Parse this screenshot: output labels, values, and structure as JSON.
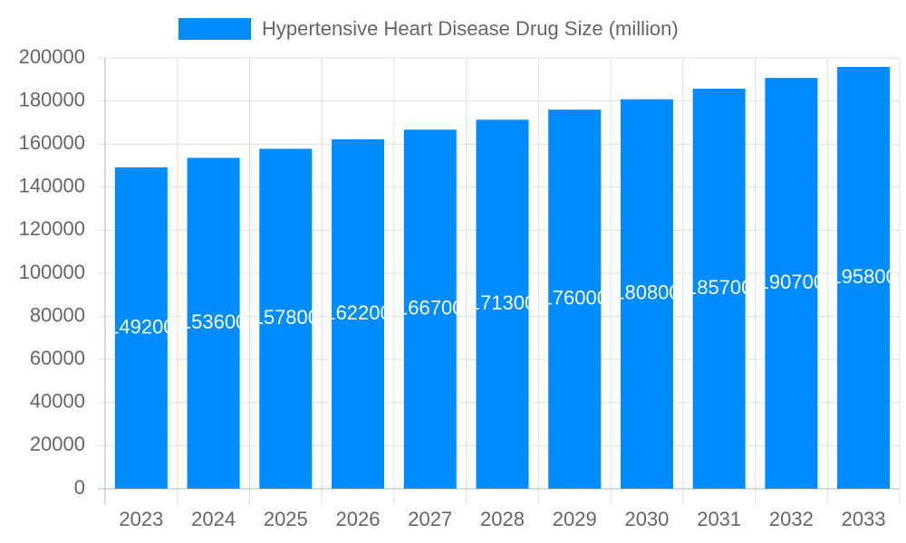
{
  "chart_data": {
    "type": "bar",
    "legend_label": "Hypertensive Heart Disease Drug Size (million)",
    "categories": [
      "2023",
      "2024",
      "2025",
      "2026",
      "2027",
      "2028",
      "2029",
      "2030",
      "2031",
      "2032",
      "2033"
    ],
    "values": [
      149200,
      153600,
      157800,
      162200,
      166700,
      171300,
      176000,
      180800,
      185700,
      190700,
      195800
    ],
    "color": "#008cff",
    "ylim": [
      0,
      200000
    ],
    "yticks": [
      0,
      20000,
      40000,
      60000,
      80000,
      100000,
      120000,
      140000,
      160000,
      180000,
      200000
    ],
    "grid": true
  }
}
